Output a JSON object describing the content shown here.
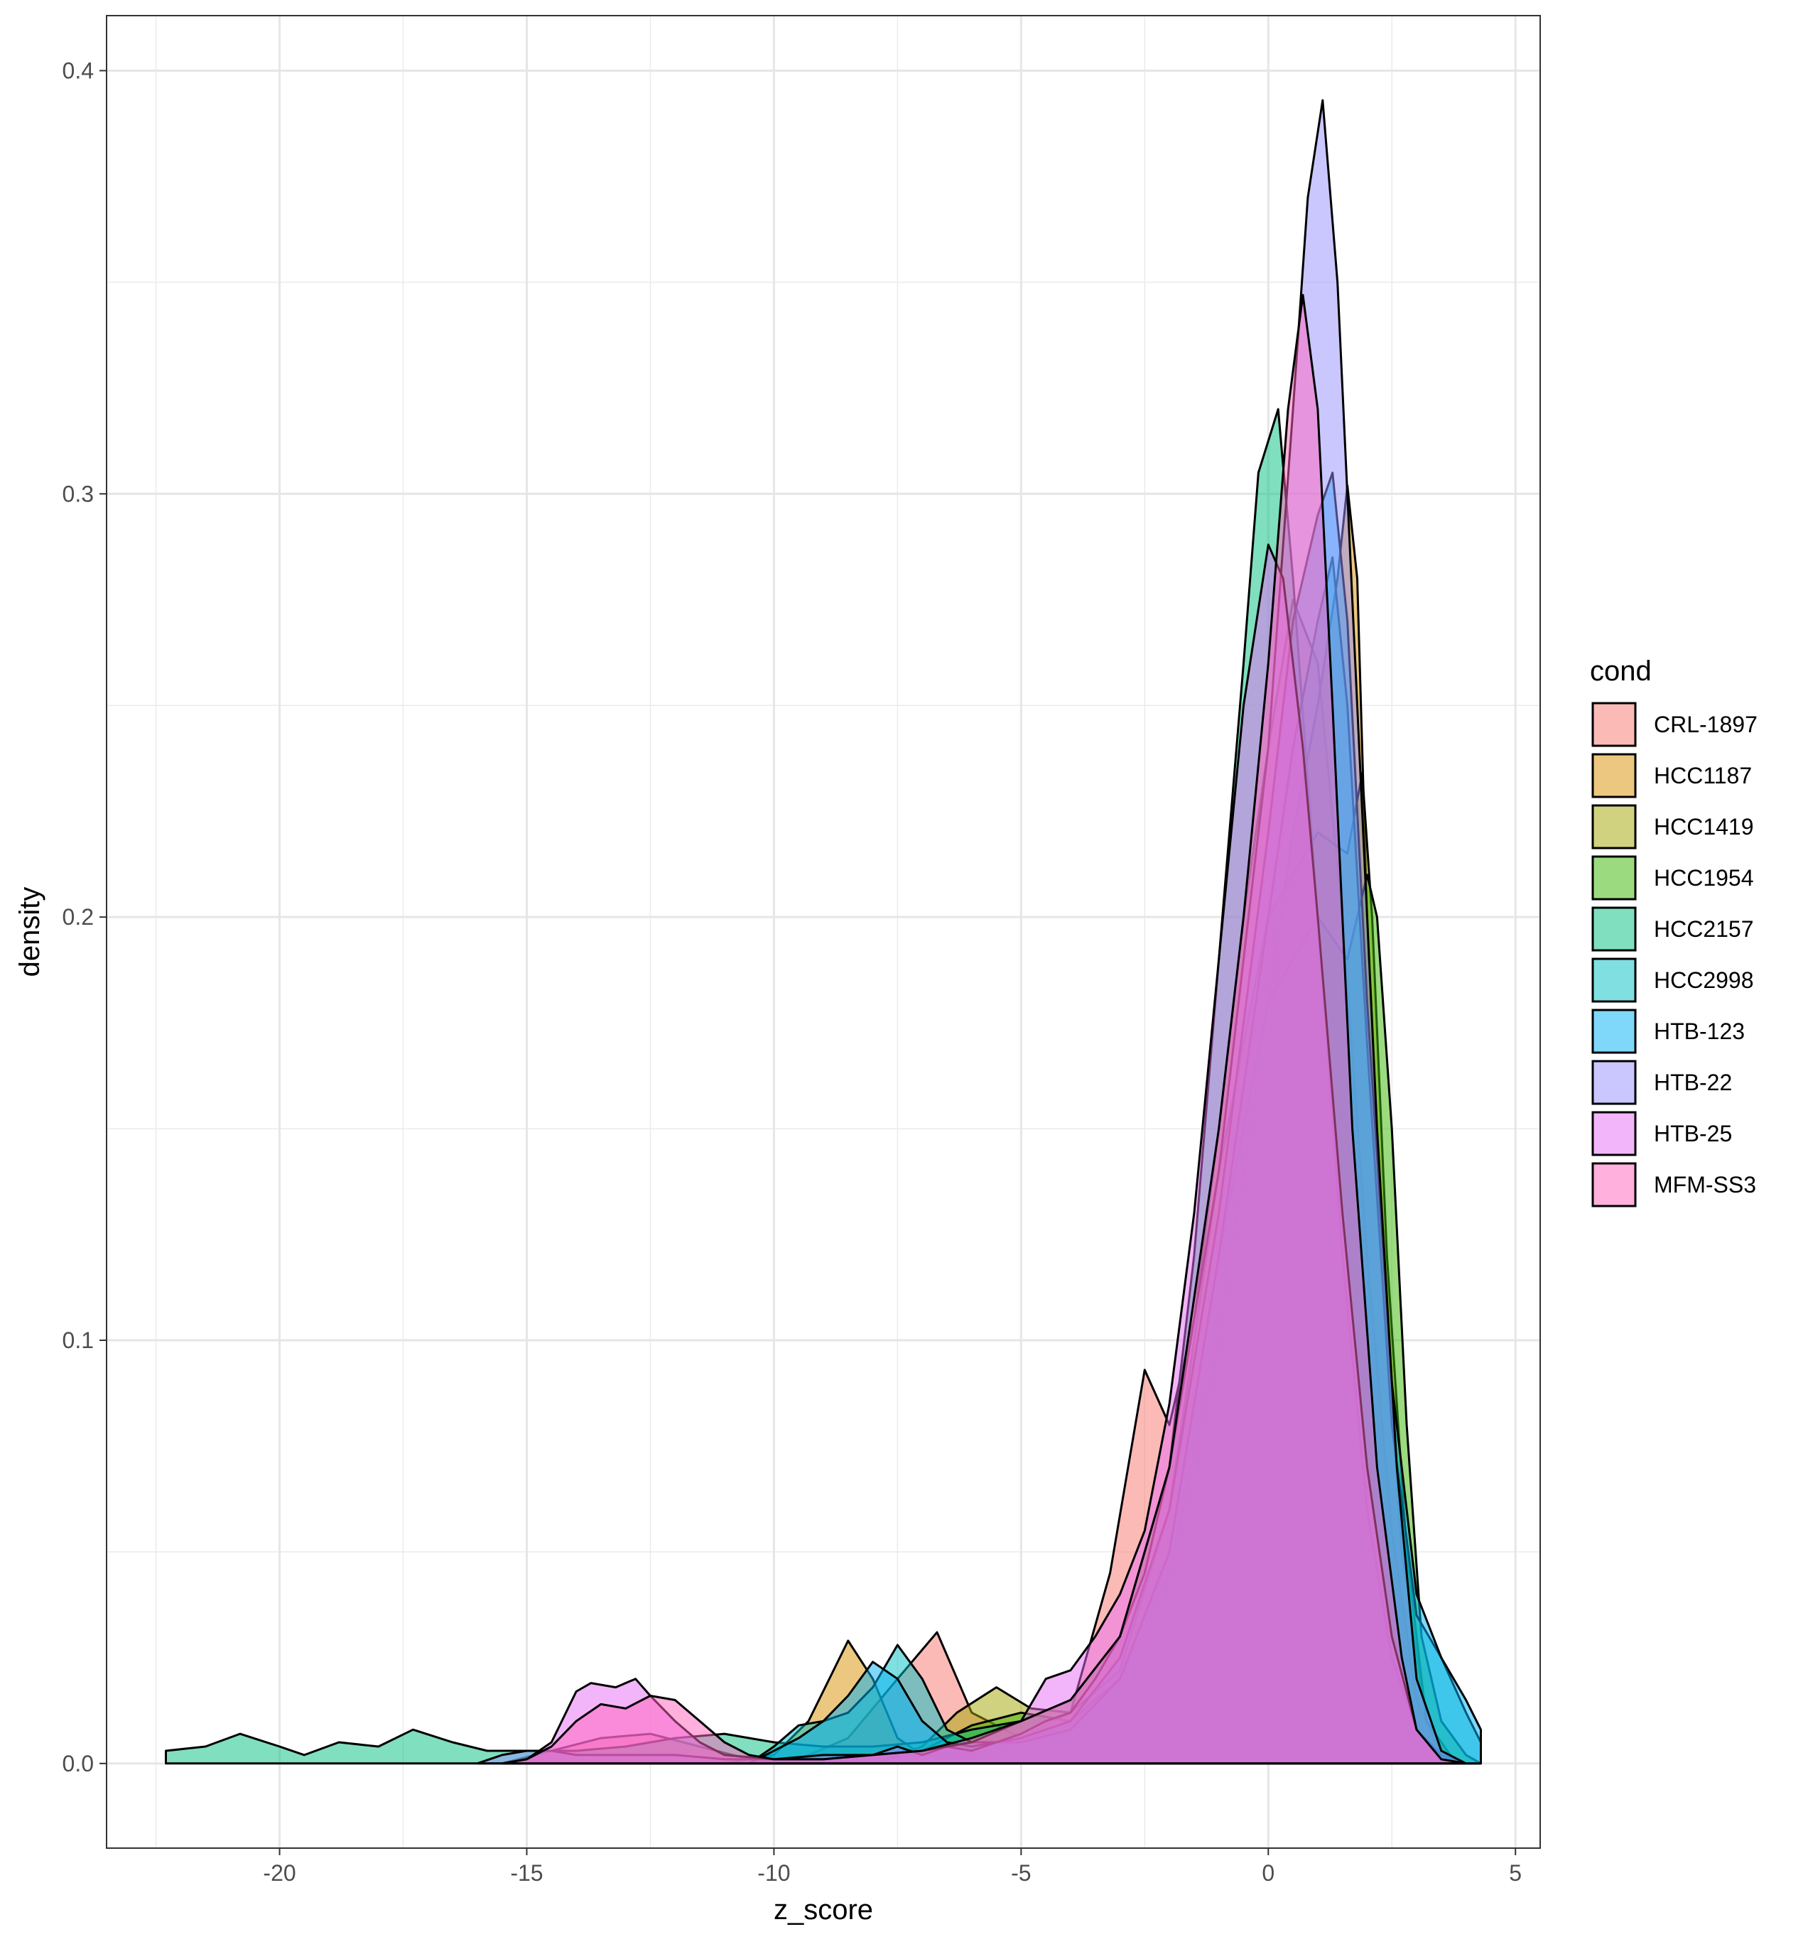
{
  "chart_data": {
    "type": "area",
    "subtype": "density",
    "xlabel": "z_score",
    "ylabel": "density",
    "xlim": [
      -23.5,
      5.5
    ],
    "ylim": [
      -0.02,
      0.413
    ],
    "x_ticks": [
      -20,
      -15,
      -10,
      -5,
      0,
      5
    ],
    "x_tick_labels": [
      "-20",
      "-15",
      "-10",
      "-5",
      "0",
      "5"
    ],
    "y_ticks": [
      0.0,
      0.1,
      0.2,
      0.3,
      0.4
    ],
    "y_tick_labels": [
      "0.0",
      "0.1",
      "0.2",
      "0.3",
      "0.4"
    ],
    "grid": true,
    "legend": {
      "title": "cond",
      "position": "right"
    },
    "series": [
      {
        "name": "CRL-1897",
        "color": "#F8766D",
        "points": [
          [
            -15.5,
            0
          ],
          [
            -14.5,
            0.003
          ],
          [
            -13.5,
            0.006
          ],
          [
            -12.5,
            0.007
          ],
          [
            -11.5,
            0.004
          ],
          [
            -10.5,
            0.001
          ],
          [
            -9.5,
            0.001
          ],
          [
            -8.5,
            0.006
          ],
          [
            -7.5,
            0.02
          ],
          [
            -6.7,
            0.031
          ],
          [
            -6,
            0.012
          ],
          [
            -5,
            0.006
          ],
          [
            -4,
            0.012
          ],
          [
            -3.2,
            0.045
          ],
          [
            -2.5,
            0.093
          ],
          [
            -2,
            0.08
          ],
          [
            -1.5,
            0.105
          ],
          [
            -1,
            0.15
          ],
          [
            -0.5,
            0.2
          ],
          [
            0,
            0.24
          ],
          [
            0.5,
            0.275
          ],
          [
            1,
            0.26
          ],
          [
            1.5,
            0.2
          ],
          [
            2,
            0.12
          ],
          [
            2.5,
            0.055
          ],
          [
            3,
            0.015
          ],
          [
            3.5,
            0.002
          ],
          [
            4,
            0
          ]
        ]
      },
      {
        "name": "HCC1187",
        "color": "#D89000",
        "points": [
          [
            -11,
            0
          ],
          [
            -10,
            0.002
          ],
          [
            -9.3,
            0.01
          ],
          [
            -8.5,
            0.029
          ],
          [
            -8,
            0.02
          ],
          [
            -7.5,
            0.006
          ],
          [
            -7,
            0.002
          ],
          [
            -6,
            0.002
          ],
          [
            -5,
            0.005
          ],
          [
            -4,
            0.01
          ],
          [
            -3,
            0.02
          ],
          [
            -2,
            0.045
          ],
          [
            -1,
            0.1
          ],
          [
            0,
            0.18
          ],
          [
            0.5,
            0.22
          ],
          [
            1,
            0.25
          ],
          [
            1.4,
            0.28
          ],
          [
            1.6,
            0.302
          ],
          [
            1.8,
            0.28
          ],
          [
            2,
            0.2
          ],
          [
            2.3,
            0.12
          ],
          [
            2.7,
            0.05
          ],
          [
            3.2,
            0.01
          ],
          [
            3.8,
            0
          ],
          [
            4.2,
            0
          ]
        ]
      },
      {
        "name": "HCC1419",
        "color": "#A3A500",
        "points": [
          [
            -8,
            0
          ],
          [
            -7,
            0.004
          ],
          [
            -6.3,
            0.012
          ],
          [
            -5.5,
            0.018
          ],
          [
            -4.8,
            0.013
          ],
          [
            -4,
            0.012
          ],
          [
            -3,
            0.022
          ],
          [
            -2,
            0.06
          ],
          [
            -1,
            0.14
          ],
          [
            0,
            0.2
          ],
          [
            1,
            0.22
          ],
          [
            1.6,
            0.215
          ],
          [
            1.9,
            0.234
          ],
          [
            2.1,
            0.2
          ],
          [
            2.4,
            0.12
          ],
          [
            2.8,
            0.05
          ],
          [
            3.2,
            0.01
          ],
          [
            3.8,
            0
          ]
        ]
      },
      {
        "name": "HCC1954",
        "color": "#39B600",
        "points": [
          [
            -8,
            0
          ],
          [
            -7,
            0.003
          ],
          [
            -6,
            0.009
          ],
          [
            -5,
            0.012
          ],
          [
            -4,
            0.01
          ],
          [
            -3,
            0.02
          ],
          [
            -2,
            0.05
          ],
          [
            -1,
            0.12
          ],
          [
            0,
            0.18
          ],
          [
            1,
            0.2
          ],
          [
            1.6,
            0.19
          ],
          [
            2,
            0.21
          ],
          [
            2.2,
            0.2
          ],
          [
            2.5,
            0.15
          ],
          [
            2.8,
            0.08
          ],
          [
            3.1,
            0.03
          ],
          [
            3.5,
            0.01
          ],
          [
            4,
            0.002
          ],
          [
            4.3,
            0
          ]
        ]
      },
      {
        "name": "HCC2157",
        "color": "#00BF7D",
        "points": [
          [
            -22.3,
            0.003
          ],
          [
            -21.5,
            0.004
          ],
          [
            -20.8,
            0.007
          ],
          [
            -20,
            0.004
          ],
          [
            -19.5,
            0.002
          ],
          [
            -18.8,
            0.005
          ],
          [
            -18,
            0.004
          ],
          [
            -17.3,
            0.008
          ],
          [
            -16.5,
            0.005
          ],
          [
            -15.8,
            0.003
          ],
          [
            -15,
            0.003
          ],
          [
            -14,
            0.003
          ],
          [
            -13,
            0.004
          ],
          [
            -12,
            0.006
          ],
          [
            -11,
            0.007
          ],
          [
            -10,
            0.005
          ],
          [
            -9,
            0.004
          ],
          [
            -8,
            0.004
          ],
          [
            -7,
            0.005
          ],
          [
            -6,
            0.008
          ],
          [
            -5,
            0.01
          ],
          [
            -4,
            0.015
          ],
          [
            -3,
            0.03
          ],
          [
            -2,
            0.07
          ],
          [
            -1.5,
            0.12
          ],
          [
            -1,
            0.19
          ],
          [
            -0.5,
            0.26
          ],
          [
            -0.2,
            0.305
          ],
          [
            0.2,
            0.32
          ],
          [
            0.5,
            0.28
          ],
          [
            1,
            0.2
          ],
          [
            1.5,
            0.12
          ],
          [
            2,
            0.06
          ],
          [
            2.5,
            0.025
          ],
          [
            3,
            0.008
          ],
          [
            3.5,
            0.002
          ],
          [
            4,
            0
          ]
        ]
      },
      {
        "name": "HCC2998",
        "color": "#00BFC4",
        "points": [
          [
            -10.5,
            0
          ],
          [
            -10,
            0.004
          ],
          [
            -9.5,
            0.009
          ],
          [
            -9,
            0.01
          ],
          [
            -8.5,
            0.012
          ],
          [
            -8,
            0.018
          ],
          [
            -7.5,
            0.028
          ],
          [
            -7,
            0.02
          ],
          [
            -6.5,
            0.008
          ],
          [
            -6,
            0.005
          ],
          [
            -5,
            0.005
          ],
          [
            -4,
            0.008
          ],
          [
            -3,
            0.02
          ],
          [
            -2,
            0.05
          ],
          [
            -1,
            0.12
          ],
          [
            0,
            0.2
          ],
          [
            0.5,
            0.24
          ],
          [
            1,
            0.27
          ],
          [
            1.3,
            0.285
          ],
          [
            1.6,
            0.25
          ],
          [
            2,
            0.17
          ],
          [
            2.5,
            0.08
          ],
          [
            3,
            0.035
          ],
          [
            3.5,
            0.025
          ],
          [
            4,
            0.012
          ],
          [
            4.3,
            0.005
          ]
        ]
      },
      {
        "name": "HTB-123",
        "color": "#00B0F6",
        "points": [
          [
            -10.5,
            0
          ],
          [
            -10,
            0.003
          ],
          [
            -9.5,
            0.006
          ],
          [
            -9,
            0.01
          ],
          [
            -8.5,
            0.016
          ],
          [
            -8,
            0.024
          ],
          [
            -7.5,
            0.02
          ],
          [
            -7,
            0.01
          ],
          [
            -6.5,
            0.005
          ],
          [
            -6,
            0.004
          ],
          [
            -5,
            0.006
          ],
          [
            -4,
            0.01
          ],
          [
            -3,
            0.025
          ],
          [
            -2,
            0.06
          ],
          [
            -1,
            0.13
          ],
          [
            0,
            0.22
          ],
          [
            0.5,
            0.27
          ],
          [
            1,
            0.295
          ],
          [
            1.3,
            0.305
          ],
          [
            1.6,
            0.27
          ],
          [
            2,
            0.18
          ],
          [
            2.5,
            0.09
          ],
          [
            3,
            0.04
          ],
          [
            3.5,
            0.025
          ],
          [
            4,
            0.015
          ],
          [
            4.3,
            0.008
          ]
        ]
      },
      {
        "name": "HTB-22",
        "color": "#9590FF",
        "points": [
          [
            -16,
            0
          ],
          [
            -15.5,
            0.002
          ],
          [
            -15,
            0.003
          ],
          [
            -14.5,
            0.003
          ],
          [
            -14,
            0.002
          ],
          [
            -13,
            0.002
          ],
          [
            -12,
            0.002
          ],
          [
            -11,
            0.001
          ],
          [
            -10,
            0.001
          ],
          [
            -9,
            0.002
          ],
          [
            -8,
            0.002
          ],
          [
            -7.5,
            0.004
          ],
          [
            -7,
            0.002
          ],
          [
            -6.5,
            0.004
          ],
          [
            -6,
            0.003
          ],
          [
            -5.5,
            0.005
          ],
          [
            -5,
            0.007
          ],
          [
            -4.5,
            0.01
          ],
          [
            -4,
            0.012
          ],
          [
            -3.5,
            0.02
          ],
          [
            -3,
            0.03
          ],
          [
            -2.5,
            0.045
          ],
          [
            -2,
            0.07
          ],
          [
            -1,
            0.14
          ],
          [
            0,
            0.24
          ],
          [
            0.5,
            0.32
          ],
          [
            0.8,
            0.37
          ],
          [
            1.1,
            0.393
          ],
          [
            1.4,
            0.35
          ],
          [
            1.8,
            0.25
          ],
          [
            2.2,
            0.15
          ],
          [
            2.6,
            0.07
          ],
          [
            3,
            0.02
          ],
          [
            3.5,
            0.003
          ],
          [
            4,
            0
          ]
        ]
      },
      {
        "name": "HTB-25",
        "color": "#E76BF3",
        "points": [
          [
            -15.5,
            0
          ],
          [
            -15,
            0.001
          ],
          [
            -14.5,
            0.005
          ],
          [
            -14,
            0.017
          ],
          [
            -13.7,
            0.019
          ],
          [
            -13.2,
            0.018
          ],
          [
            -12.8,
            0.02
          ],
          [
            -12.5,
            0.016
          ],
          [
            -12,
            0.01
          ],
          [
            -11.5,
            0.005
          ],
          [
            -11,
            0.002
          ],
          [
            -10,
            0.001
          ],
          [
            -9,
            0.001
          ],
          [
            -8,
            0.002
          ],
          [
            -7,
            0.003
          ],
          [
            -6,
            0.005
          ],
          [
            -5,
            0.01
          ],
          [
            -4.5,
            0.02
          ],
          [
            -4,
            0.022
          ],
          [
            -3.5,
            0.03
          ],
          [
            -3,
            0.04
          ],
          [
            -2.5,
            0.055
          ],
          [
            -2,
            0.085
          ],
          [
            -1.5,
            0.13
          ],
          [
            -1,
            0.19
          ],
          [
            -0.5,
            0.25
          ],
          [
            0,
            0.288
          ],
          [
            0.3,
            0.28
          ],
          [
            0.7,
            0.24
          ],
          [
            1,
            0.2
          ],
          [
            1.5,
            0.13
          ],
          [
            2,
            0.07
          ],
          [
            2.5,
            0.03
          ],
          [
            3,
            0.008
          ],
          [
            3.5,
            0.001
          ],
          [
            4,
            0
          ]
        ]
      },
      {
        "name": "MFM-SS3",
        "color": "#FF62BC",
        "points": [
          [
            -15.5,
            0
          ],
          [
            -15,
            0.001
          ],
          [
            -14.5,
            0.004
          ],
          [
            -14,
            0.01
          ],
          [
            -13.5,
            0.014
          ],
          [
            -13,
            0.013
          ],
          [
            -12.5,
            0.016
          ],
          [
            -12,
            0.015
          ],
          [
            -11.5,
            0.01
          ],
          [
            -11,
            0.005
          ],
          [
            -10.5,
            0.002
          ],
          [
            -10,
            0.001
          ],
          [
            -9,
            0.001
          ],
          [
            -8,
            0.002
          ],
          [
            -7,
            0.003
          ],
          [
            -6,
            0.006
          ],
          [
            -5,
            0.01
          ],
          [
            -4,
            0.015
          ],
          [
            -3,
            0.03
          ],
          [
            -2,
            0.07
          ],
          [
            -1,
            0.15
          ],
          [
            -0.5,
            0.2
          ],
          [
            0,
            0.26
          ],
          [
            0.4,
            0.32
          ],
          [
            0.7,
            0.347
          ],
          [
            1,
            0.32
          ],
          [
            1.3,
            0.25
          ],
          [
            1.7,
            0.15
          ],
          [
            2.2,
            0.07
          ],
          [
            2.7,
            0.025
          ],
          [
            3,
            0.008
          ],
          [
            3.5,
            0.001
          ],
          [
            4,
            0
          ]
        ]
      }
    ]
  }
}
